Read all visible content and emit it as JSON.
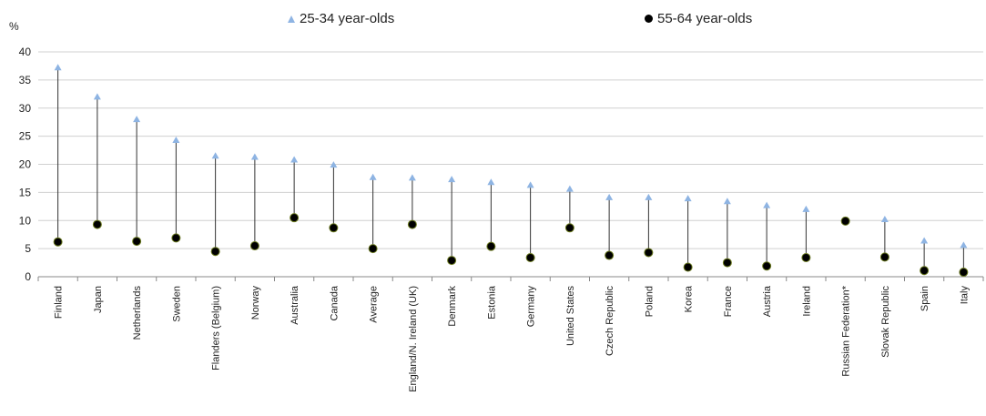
{
  "chart_data": {
    "type": "scatter",
    "y_unit": "%",
    "ylim": [
      0,
      40
    ],
    "yticks": [
      0,
      5,
      10,
      15,
      20,
      25,
      30,
      35,
      40
    ],
    "grid": true,
    "legend_position": "top",
    "categories": [
      "Finland",
      "Japan",
      "Netherlands",
      "Sweden",
      "Flanders (Belgium)",
      "Norway",
      "Australia",
      "Canada",
      "Average",
      "England/N. Ireland (UK)",
      "Denmark",
      "Estonia",
      "Germany",
      "United States",
      "Czech Republic",
      "Poland",
      "Korea",
      "France",
      "Austria",
      "Ireland",
      "Russian Federation*",
      "Slovak Republic",
      "Spain",
      "Italy"
    ],
    "series": [
      {
        "name": "25-34 year-olds",
        "marker": "triangle",
        "color": "#8eb4e3",
        "values": [
          37.2,
          32.0,
          28.0,
          24.3,
          21.5,
          21.3,
          20.8,
          19.9,
          17.7,
          17.6,
          17.3,
          16.8,
          16.3,
          15.6,
          14.1,
          14.1,
          13.9,
          13.4,
          12.7,
          12.0,
          9.9,
          10.2,
          6.4,
          5.6
        ]
      },
      {
        "name": "55-64 year-olds",
        "marker": "circle",
        "color": "#000000",
        "values": [
          6.2,
          9.3,
          6.3,
          6.9,
          4.5,
          5.5,
          10.5,
          8.7,
          5.0,
          9.3,
          2.9,
          5.4,
          3.4,
          8.7,
          3.8,
          4.3,
          1.7,
          2.5,
          1.9,
          3.4,
          9.9,
          3.5,
          1.1,
          0.8
        ]
      }
    ]
  }
}
